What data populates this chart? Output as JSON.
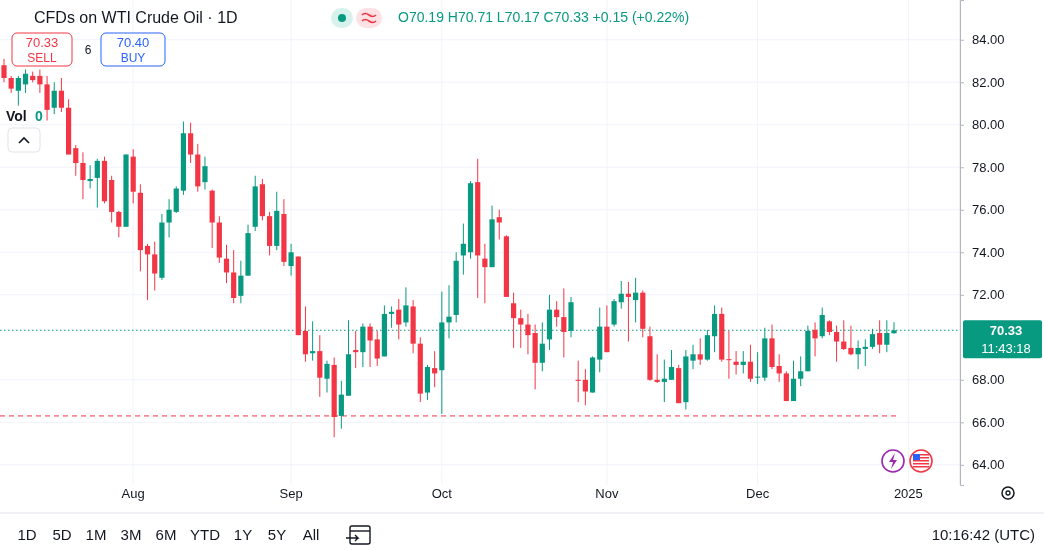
{
  "chart_data": {
    "type": "candlestick",
    "title": "CFDs on WTI Crude Oil · 1D",
    "categories": [
      null,
      null,
      null,
      null,
      null,
      null,
      null,
      null,
      null,
      null,
      null,
      null,
      null,
      null,
      null,
      null,
      null,
      null,
      "Aug",
      null,
      null,
      null,
      null,
      null,
      null,
      null,
      null,
      null,
      null,
      null,
      null,
      null,
      null,
      null,
      null,
      null,
      null,
      null,
      null,
      null,
      "Sep",
      null,
      null,
      null,
      null,
      null,
      null,
      null,
      null,
      null,
      null,
      null,
      null,
      null,
      null,
      null,
      null,
      null,
      null,
      null,
      null,
      "Oct",
      null,
      null,
      null,
      null,
      null,
      null,
      null,
      null,
      null,
      null,
      null,
      null,
      null,
      null,
      null,
      null,
      null,
      null,
      null,
      null,
      null,
      null,
      "Nov",
      null,
      null,
      null,
      null,
      null,
      null,
      null,
      null,
      null,
      null,
      null,
      null,
      null,
      null,
      null,
      null,
      null,
      null,
      null,
      null,
      "Dec",
      null,
      null,
      null,
      null,
      null,
      null,
      null,
      null,
      null,
      null,
      null,
      null,
      null,
      null,
      null,
      null,
      null,
      null,
      null,
      null,
      "2025"
    ],
    "ohlc": [
      [
        82.8,
        83.1,
        82.0,
        82.2
      ],
      [
        82.2,
        82.3,
        81.5,
        81.7
      ],
      [
        81.6,
        82.3,
        80.9,
        82.2
      ],
      [
        81.9,
        82.6,
        81.5,
        82.4
      ],
      [
        82.3,
        82.5,
        82.0,
        82.1
      ],
      [
        82.3,
        82.6,
        81.5,
        81.9
      ],
      [
        81.9,
        82.3,
        80.2,
        80.7
      ],
      [
        80.8,
        82.0,
        80.5,
        81.6
      ],
      [
        81.6,
        82.2,
        80.6,
        80.8
      ],
      [
        80.8,
        81.2,
        78.6,
        78.6
      ],
      [
        78.9,
        79.05,
        77.6,
        78.2
      ],
      [
        78.2,
        78.7,
        76.5,
        77.4
      ],
      [
        77.35,
        78.1,
        77.0,
        77.45
      ],
      [
        77.5,
        78.4,
        76.1,
        78.3
      ],
      [
        78.3,
        78.5,
        76.3,
        76.4
      ],
      [
        77.4,
        77.6,
        75.4,
        75.9
      ],
      [
        75.9,
        75.95,
        74.7,
        75.2
      ],
      [
        75.2,
        78.6,
        75.2,
        78.6
      ],
      [
        78.5,
        78.85,
        76.3,
        76.85
      ],
      [
        76.8,
        77.2,
        73.1,
        74.1
      ],
      [
        74.3,
        74.4,
        71.75,
        73.9
      ],
      [
        73.9,
        74.5,
        72.2,
        73.0
      ],
      [
        72.8,
        75.8,
        72.7,
        75.4
      ],
      [
        75.4,
        76.5,
        74.7,
        76.0
      ],
      [
        75.9,
        77.1,
        75.85,
        77.0
      ],
      [
        76.9,
        80.15,
        76.7,
        79.6
      ],
      [
        79.6,
        80.1,
        78.2,
        78.6
      ],
      [
        78.6,
        79.1,
        76.85,
        77.1
      ],
      [
        77.3,
        78.5,
        76.95,
        78.05
      ],
      [
        76.9,
        76.95,
        74.2,
        75.4
      ],
      [
        75.4,
        75.7,
        73.5,
        73.75
      ],
      [
        73.7,
        74.35,
        72.55,
        73.05
      ],
      [
        73.05,
        74.1,
        71.6,
        71.85
      ],
      [
        71.95,
        73.6,
        71.6,
        72.9
      ],
      [
        72.9,
        75.3,
        72.9,
        74.9
      ],
      [
        75.2,
        77.6,
        75.0,
        77.1
      ],
      [
        77.2,
        77.45,
        75.5,
        75.7
      ],
      [
        75.7,
        75.9,
        73.85,
        74.3
      ],
      [
        74.3,
        76.85,
        74.1,
        75.95
      ],
      [
        75.8,
        76.5,
        73.35,
        73.55
      ],
      [
        73.35,
        74.4,
        72.9,
        74.0
      ],
      [
        73.8,
        73.8,
        70.1,
        70.1
      ],
      [
        70.3,
        71.45,
        68.85,
        69.2
      ],
      [
        69.25,
        70.75,
        68.9,
        69.35
      ],
      [
        69.35,
        70.1,
        67.2,
        68.1
      ],
      [
        68.05,
        68.9,
        67.4,
        68.75
      ],
      [
        68.7,
        69.05,
        65.3,
        66.25
      ],
      [
        66.3,
        67.95,
        65.7,
        67.3
      ],
      [
        67.25,
        70.8,
        67.25,
        69.2
      ],
      [
        69.4,
        70.3,
        68.55,
        69.3
      ],
      [
        69.3,
        70.65,
        68.6,
        70.5
      ],
      [
        70.5,
        70.65,
        68.6,
        69.85
      ],
      [
        69.9,
        70.3,
        68.65,
        69.0
      ],
      [
        69.1,
        71.5,
        69.1,
        71.1
      ],
      [
        71.1,
        71.45,
        70.45,
        71.2
      ],
      [
        71.3,
        71.8,
        69.9,
        70.6
      ],
      [
        70.7,
        72.35,
        70.5,
        71.5
      ],
      [
        71.45,
        71.75,
        69.25,
        69.7
      ],
      [
        69.7,
        70.0,
        66.95,
        67.35
      ],
      [
        67.4,
        68.7,
        67.05,
        68.6
      ],
      [
        68.55,
        69.35,
        67.65,
        68.3
      ],
      [
        68.45,
        72.15,
        66.4,
        70.7
      ],
      [
        70.7,
        72.45,
        69.95,
        70.97
      ],
      [
        71.05,
        74.0,
        70.7,
        73.6
      ],
      [
        73.85,
        75.35,
        72.95,
        74.4
      ],
      [
        74.0,
        77.35,
        73.7,
        77.25
      ],
      [
        77.3,
        78.4,
        71.85,
        73.85
      ],
      [
        73.7,
        74.4,
        71.6,
        73.3
      ],
      [
        73.3,
        76.2,
        73.3,
        75.55
      ],
      [
        75.65,
        76.0,
        74.6,
        75.4
      ],
      [
        74.75,
        74.8,
        71.9,
        71.9
      ],
      [
        71.6,
        72.1,
        69.5,
        70.9
      ],
      [
        70.9,
        71.3,
        69.5,
        70.6
      ],
      [
        70.6,
        71.1,
        69.2,
        70.1
      ],
      [
        70.2,
        70.6,
        67.55,
        68.8
      ],
      [
        68.8,
        70.7,
        68.4,
        69.7
      ],
      [
        69.9,
        72.0,
        69.4,
        71.3
      ],
      [
        71.3,
        71.7,
        70.5,
        70.95
      ],
      [
        70.95,
        72.3,
        69.05,
        70.25
      ],
      [
        70.3,
        71.9,
        70.0,
        71.65
      ],
      [
        68.0,
        68.9,
        66.95,
        67.95
      ],
      [
        68.0,
        68.5,
        66.8,
        67.45
      ],
      [
        67.4,
        69.1,
        67.4,
        69.05
      ],
      [
        68.95,
        71.4,
        68.35,
        70.5
      ],
      [
        70.5,
        71.5,
        69.3,
        69.3
      ],
      [
        70.6,
        71.8,
        70.5,
        71.7
      ],
      [
        71.65,
        72.65,
        71.35,
        72.05
      ],
      [
        72.05,
        72.6,
        69.8,
        71.9
      ],
      [
        71.75,
        72.8,
        70.7,
        72.1
      ],
      [
        72.1,
        72.2,
        70.0,
        70.4
      ],
      [
        70.05,
        70.5,
        67.95,
        68.0
      ],
      [
        68.0,
        69.2,
        67.85,
        67.9
      ],
      [
        67.9,
        68.95,
        66.95,
        68.05
      ],
      [
        68.0,
        69.4,
        68.0,
        68.6
      ],
      [
        68.55,
        68.7,
        66.9,
        66.9
      ],
      [
        66.95,
        69.4,
        66.6,
        69.1
      ],
      [
        68.9,
        69.65,
        68.5,
        69.2
      ],
      [
        69.2,
        69.95,
        68.7,
        68.95
      ],
      [
        68.95,
        70.35,
        68.9,
        70.1
      ],
      [
        70.05,
        71.5,
        69.3,
        71.1
      ],
      [
        71.1,
        71.4,
        68.85,
        68.95
      ],
      [
        68.97,
        70.3,
        68.05,
        68.93
      ],
      [
        68.85,
        69.35,
        68.25,
        68.7
      ],
      [
        68.7,
        69.35,
        68.3,
        68.85
      ],
      [
        68.85,
        69.65,
        67.9,
        68.05
      ],
      [
        68.1,
        69.3,
        67.8,
        68.15
      ],
      [
        68.1,
        70.45,
        67.95,
        69.95
      ],
      [
        69.95,
        70.6,
        68.5,
        68.6
      ],
      [
        68.65,
        69.2,
        67.9,
        68.3
      ],
      [
        68.3,
        68.4,
        67.0,
        67.0
      ],
      [
        67.0,
        68.9,
        67.0,
        68.05
      ],
      [
        68.05,
        69.1,
        67.7,
        68.4
      ],
      [
        68.4,
        70.55,
        68.4,
        70.3
      ],
      [
        70.35,
        70.7,
        69.1,
        69.95
      ],
      [
        70.05,
        71.4,
        69.95,
        71.05
      ],
      [
        70.75,
        70.8,
        70.1,
        70.25
      ],
      [
        70.25,
        70.55,
        68.85,
        69.8
      ],
      [
        69.8,
        70.8,
        69.4,
        69.45
      ],
      [
        69.5,
        70.55,
        69.15,
        69.2
      ],
      [
        69.2,
        69.85,
        68.5,
        69.5
      ],
      [
        69.45,
        69.9,
        68.65,
        69.55
      ],
      [
        69.55,
        70.4,
        69.45,
        70.15
      ],
      [
        70.2,
        70.8,
        69.25,
        69.65
      ],
      [
        69.65,
        70.8,
        69.3,
        70.2
      ],
      [
        70.19,
        70.71,
        70.17,
        70.33
      ],
      null,
      null
    ],
    "ylim": [
      63.05,
      85.87
    ],
    "yticks": [
      {
        "value": 64,
        "label": "64.00"
      },
      {
        "value": 66,
        "label": "66.00"
      },
      {
        "value": 68,
        "label": "68.00"
      },
      {
        "value": 72,
        "label": "72.00"
      },
      {
        "value": 74,
        "label": "74.00"
      },
      {
        "value": 76,
        "label": "76.00"
      },
      {
        "value": 78,
        "label": "78.00"
      },
      {
        "value": 80,
        "label": "80.00"
      },
      {
        "value": 82,
        "label": "82.00"
      },
      {
        "value": 84,
        "label": "84.00"
      }
    ],
    "grid": true,
    "ref_lines": [
      {
        "axis": "y",
        "value": 70.33,
        "label": "70.33",
        "color": "#089981",
        "line_style": "dotted"
      },
      {
        "axis": "y",
        "value": 66.3,
        "color": "#f23645",
        "line_style": "dashed"
      }
    ],
    "annotations": [
      "O70.19 H70.71 L70.17 C70.33 +0.15 (+0.22%)",
      "70.33",
      "SELL",
      "6",
      "70.40",
      "BUY",
      "Vol",
      "0",
      "11:43:18",
      "1D",
      "5D",
      "1M",
      "3M",
      "6M",
      "YTD",
      "1Y",
      "5Y",
      "All",
      "10:16:42 (UTC)"
    ]
  }
}
